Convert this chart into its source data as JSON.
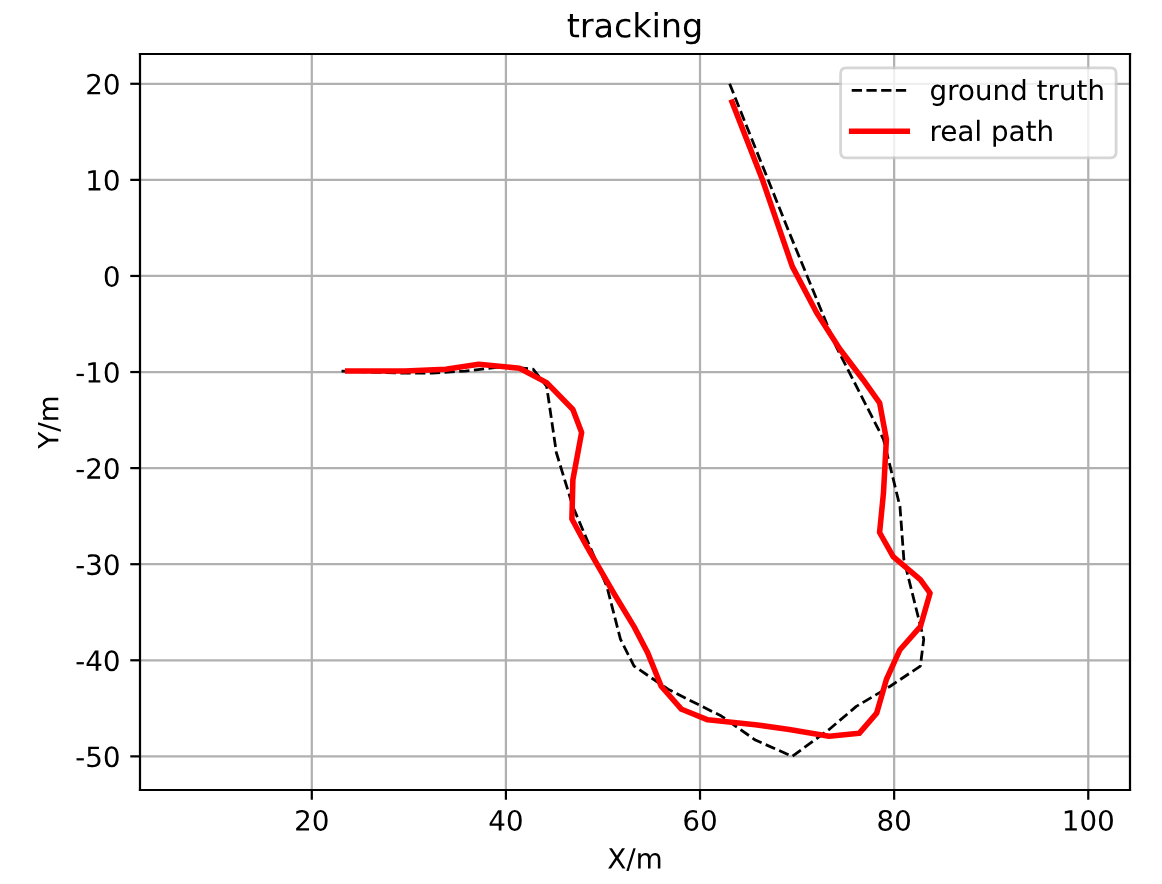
{
  "chart_data": {
    "type": "line",
    "title": "tracking",
    "xlabel": "X/m",
    "ylabel": "Y/m",
    "xlim": [
      2.3,
      104.3
    ],
    "ylim": [
      -53.5,
      23.1
    ],
    "xticks": [
      20,
      40,
      60,
      80,
      100
    ],
    "yticks": [
      -50,
      -40,
      -30,
      -20,
      -10,
      0,
      10,
      20
    ],
    "grid": true,
    "legend": "top right",
    "series": [
      {
        "name": "ground truth",
        "color": "#000000",
        "line_style": "dashed",
        "x": [
          63.05,
          69.2,
          74.0,
          78.9,
          80.6,
          81,
          83.05,
          82.7,
          79.6,
          76.1,
          73.3,
          69.5,
          65.7,
          62.2,
          59.4,
          56.7,
          53.2,
          51.8,
          50.4,
          46.9,
          45.2,
          44.2,
          42.8,
          40,
          35.8,
          32.4,
          28.9,
          23
        ],
        "values": [
          20,
          4.5,
          -7.3,
          -17,
          -24,
          -29.5,
          -37.8,
          -40.6,
          -42.7,
          -44.8,
          -47.2,
          -50,
          -48.3,
          -45.8,
          -44.4,
          -43,
          -40.6,
          -37.8,
          -32.3,
          -24,
          -18.4,
          -11.5,
          -9.7,
          -9.4,
          -9.9,
          -10.1,
          -10.1,
          -9.9
        ]
      },
      {
        "name": "real path",
        "color": "#ff0000",
        "line_style": "solid",
        "x": [
          63.3,
          66.4,
          69.5,
          72,
          74.4,
          76.8,
          78.5,
          79.2,
          78.9,
          78.5,
          79.9,
          82.7,
          83.7,
          82.7,
          80.6,
          79.2,
          78.2,
          76.4,
          73.3,
          69.2,
          65.7,
          60.8,
          58.1,
          56,
          54.6,
          53.2,
          51.1,
          48.3,
          46.8,
          46.9,
          47.8,
          46.9,
          44.2,
          41.4,
          37.2,
          33.8,
          29.6,
          23.7
        ],
        "values": [
          18.1,
          10.1,
          1.0,
          -3.8,
          -7.6,
          -10.8,
          -13.2,
          -17,
          -22.6,
          -26.7,
          -29.2,
          -31.6,
          -33,
          -36.5,
          -38.9,
          -42,
          -45.5,
          -47.6,
          -47.9,
          -47.2,
          -46.7,
          -46.2,
          -45.1,
          -42.7,
          -39.2,
          -36.5,
          -33,
          -28.1,
          -25.3,
          -21.2,
          -16.3,
          -13.9,
          -11.1,
          -9.6,
          -9.2,
          -9.7,
          -9.9,
          -9.9
        ]
      }
    ]
  }
}
